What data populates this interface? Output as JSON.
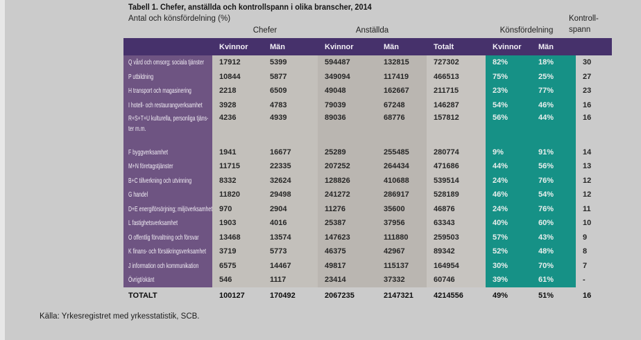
{
  "title": "Tabell 1. Chefer, anställda och kontrollspann i olika branscher, 2014",
  "subtitle": "Antal och könsfördelning (%)",
  "source": "Källa: Yrkesregistret med yrkesstatistik, SCB.",
  "colors": {
    "page_bg": "#cbcbcb",
    "header_bar": "#46316b",
    "label_col": "#6e5482",
    "chefer_band": "#c3c0bb",
    "anst_band": "#bab6b1",
    "totalt_band": "#c7c4c0",
    "kf_band": "#169186",
    "text_dark": "#262626",
    "text_light": "#f2eef5"
  },
  "table": {
    "group_headers": {
      "chefer": "Chefer",
      "anstallda": "Anställda",
      "konsfordelning": "Könsfördelning",
      "kontrollspann_line1": "Kontroll-",
      "kontrollspann_line2": "spann"
    },
    "col_headers": [
      "Kvinnor",
      "Män",
      "Kvinnor",
      "Män",
      "Totalt",
      "Kvinnor",
      "Män"
    ],
    "rows": [
      {
        "label": "Q vård och omsorg; sociala tjänster",
        "values": [
          "17912",
          "5399",
          "594487",
          "132815",
          "727302",
          "82%",
          "18%",
          "30"
        ]
      },
      {
        "label": "P utbildning",
        "values": [
          "10844",
          "5877",
          "349094",
          "117419",
          "466513",
          "75%",
          "25%",
          "27"
        ]
      },
      {
        "label": "H transport och magasinering",
        "values": [
          "2218",
          "6509",
          "49048",
          "162667",
          "211715",
          "23%",
          "77%",
          "23"
        ]
      },
      {
        "label": "I hotell- och restaurangverksamhet",
        "values": [
          "3928",
          "4783",
          "79039",
          "67248",
          "146287",
          "54%",
          "46%",
          "16"
        ]
      },
      {
        "label": "R+S+T+U kulturella, personliga tjäns-",
        "label2": "ter m.m.",
        "values": [
          "4236",
          "4939",
          "89036",
          "68776",
          "157812",
          "56%",
          "44%",
          "16"
        ],
        "gap_after": true
      },
      {
        "label": "F byggverksamhet",
        "values": [
          "1941",
          "16677",
          "25289",
          "255485",
          "280774",
          "9%",
          "91%",
          "14"
        ]
      },
      {
        "label": "M+N företagstjänster",
        "values": [
          "11715",
          "22335",
          "207252",
          "264434",
          "471686",
          "44%",
          "56%",
          "13"
        ]
      },
      {
        "label": "B+C tillverkning och utvinning",
        "values": [
          "8332",
          "32624",
          "128826",
          "410688",
          "539514",
          "24%",
          "76%",
          "12"
        ]
      },
      {
        "label": "G handel",
        "values": [
          "11820",
          "29498",
          "241272",
          "286917",
          "528189",
          "46%",
          "54%",
          "12"
        ]
      },
      {
        "label": "D+E energiförsörjning; miljöverksamhet",
        "values": [
          "970",
          "2904",
          "11276",
          "35600",
          "46876",
          "24%",
          "76%",
          "11"
        ]
      },
      {
        "label": "L fastighetsverksamhet",
        "values": [
          "1903",
          "4016",
          "25387",
          "37956",
          "63343",
          "40%",
          "60%",
          "10"
        ]
      },
      {
        "label": "O offentlig förvaltning och försvar",
        "values": [
          "13468",
          "13574",
          "147623",
          "111880",
          "259503",
          "57%",
          "43%",
          "9"
        ]
      },
      {
        "label": "K finans- och försäkringsverksamhet",
        "values": [
          "3719",
          "5773",
          "46375",
          "42967",
          "89342",
          "52%",
          "48%",
          "8"
        ]
      },
      {
        "label": "J information och kommunikation",
        "values": [
          "6575",
          "14467",
          "49817",
          "115137",
          "164954",
          "30%",
          "70%",
          "7"
        ]
      },
      {
        "label": "Övrigt/okänt",
        "values": [
          "546",
          "1117",
          "23414",
          "37332",
          "60746",
          "39%",
          "61%",
          "-"
        ]
      }
    ],
    "total": {
      "label": "TOTALT",
      "values": [
        "100127",
        "170492",
        "2067235",
        "2147321",
        "4214556",
        "49%",
        "51%",
        "16"
      ]
    }
  }
}
